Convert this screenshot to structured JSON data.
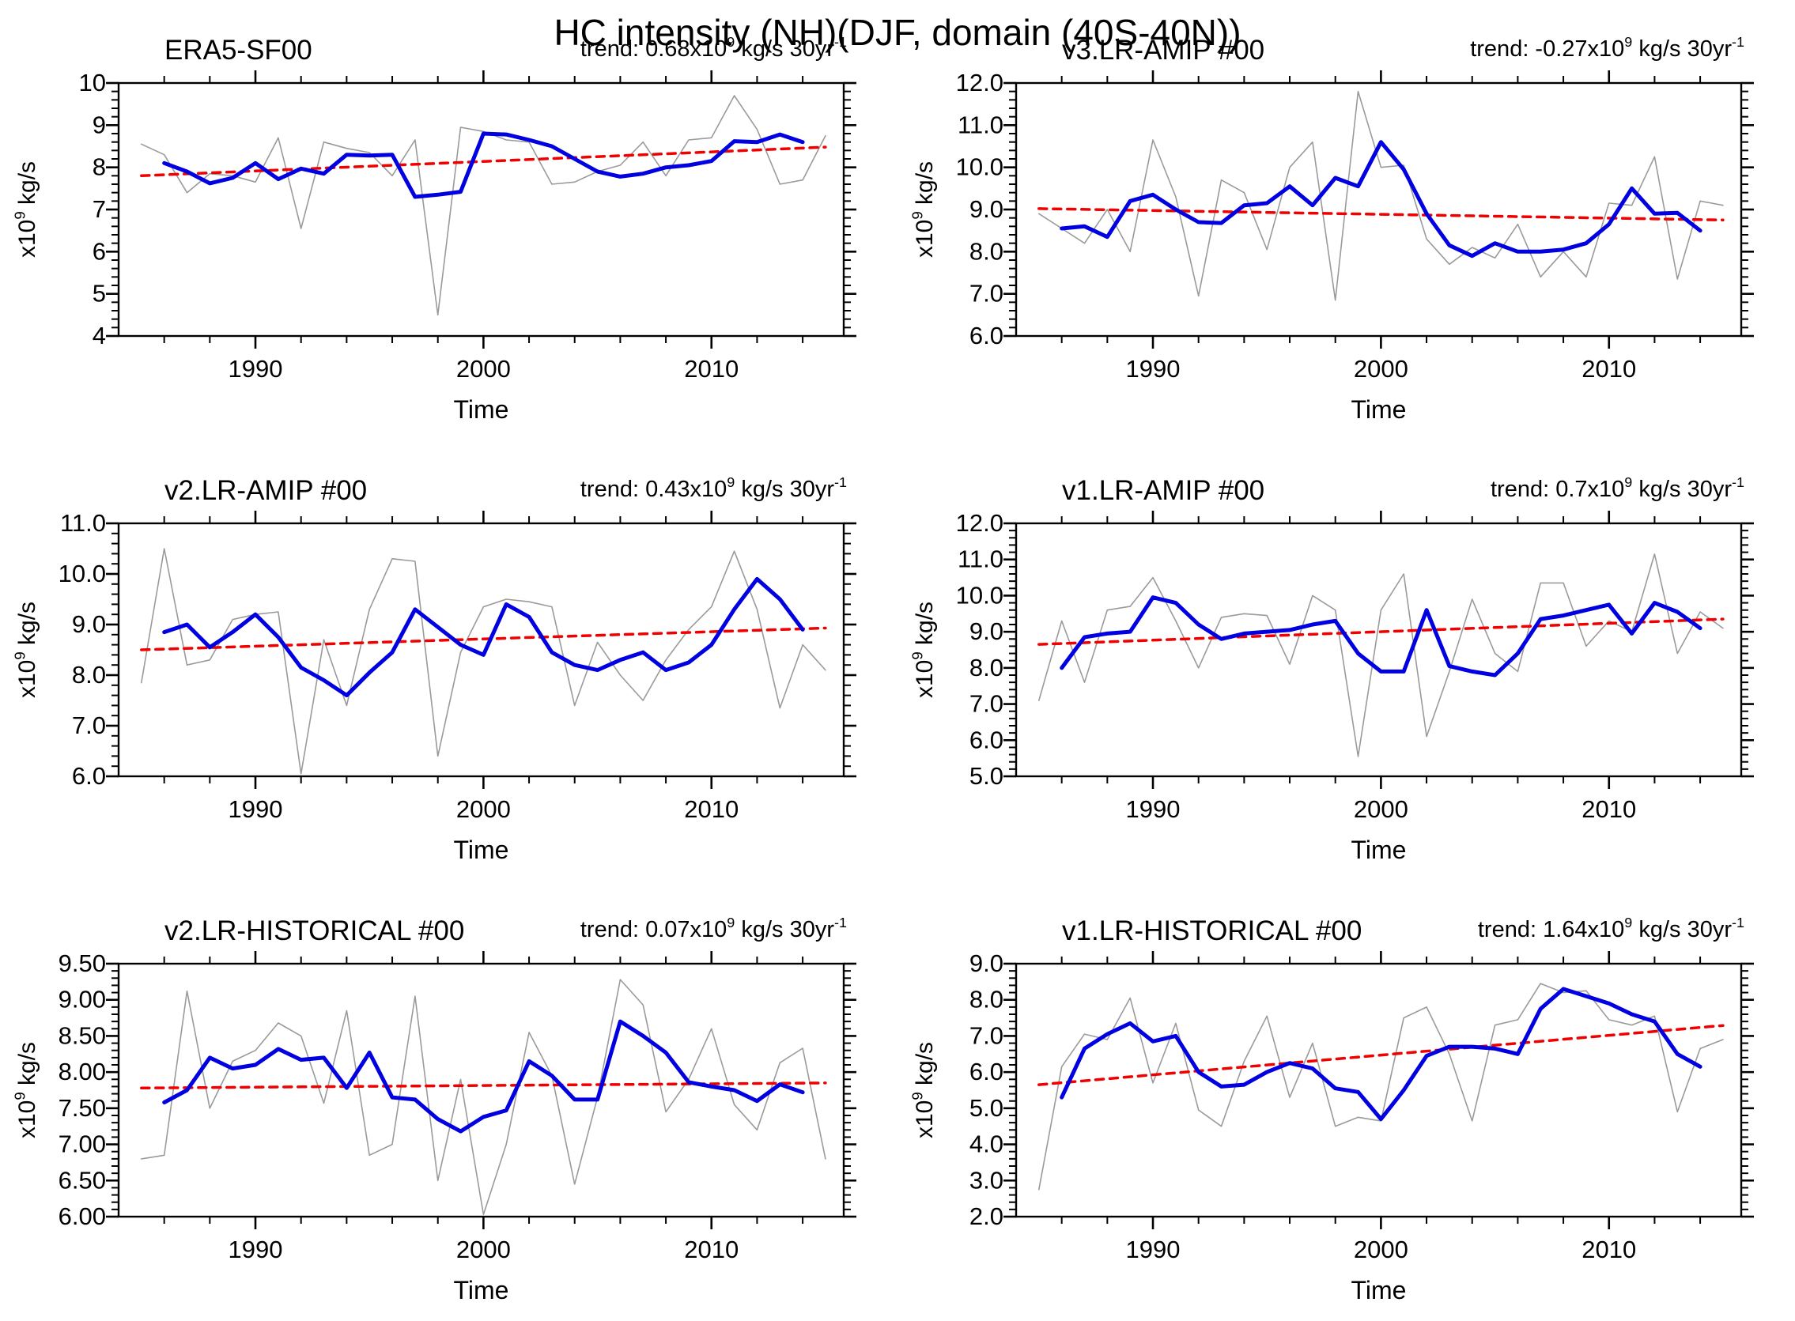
{
  "figure_title": "HC intensity (NH)(DJF, domain (40S-40N))",
  "xlabel": "Time",
  "colors": {
    "raw_line": "#9a9a9a",
    "smoothed_line": "#0000e0",
    "trend_line": "#f00000",
    "axis": "#000000"
  },
  "ylabel_parts": {
    "base": "x10",
    "exp": "9",
    "units": " kg/s"
  },
  "trend_label_parts": {
    "prefix": "trend: ",
    "x10": "x10",
    "exp": "9",
    "units": " kg/s 30yr",
    "exp2": "-1"
  },
  "x_range": [
    1984,
    2015.8
  ],
  "x_major_tick_years": [
    1990,
    2000,
    2010
  ],
  "x_minor_tick_step": 2,
  "x_years_raw": [
    1985,
    1986,
    1987,
    1988,
    1989,
    1990,
    1991,
    1992,
    1993,
    1994,
    1995,
    1996,
    1997,
    1998,
    1999,
    2000,
    2001,
    2002,
    2003,
    2004,
    2005,
    2006,
    2007,
    2008,
    2009,
    2010,
    2011,
    2012,
    2013,
    2014,
    2015
  ],
  "x_years_smoothed": [
    1986,
    1987,
    1988,
    1989,
    1990,
    1991,
    1992,
    1993,
    1994,
    1995,
    1996,
    1997,
    1998,
    1999,
    2000,
    2001,
    2002,
    2003,
    2004,
    2005,
    2006,
    2007,
    2008,
    2009,
    2010,
    2011,
    2012,
    2013,
    2014
  ],
  "chart_data": [
    {
      "id": "era5-sf00",
      "type": "line",
      "title": "ERA5-SF00",
      "trend_value": "0.68",
      "ylim": [
        4,
        10
      ],
      "ytick_step": 1,
      "ytick_decimals": 0,
      "raw_values": [
        8.55,
        8.3,
        7.4,
        7.85,
        7.8,
        7.65,
        8.7,
        6.55,
        8.6,
        8.45,
        8.35,
        7.8,
        8.65,
        4.5,
        8.95,
        8.85,
        8.65,
        8.6,
        7.6,
        7.65,
        7.9,
        8.05,
        8.6,
        7.8,
        8.65,
        8.7,
        9.7,
        8.9,
        7.6,
        7.7,
        8.75
      ],
      "smoothed_values": [
        8.1,
        7.9,
        7.62,
        7.75,
        8.1,
        7.72,
        7.97,
        7.85,
        8.3,
        8.28,
        8.3,
        7.3,
        7.35,
        7.42,
        8.8,
        8.78,
        8.65,
        8.5,
        8.2,
        7.9,
        7.78,
        7.85,
        8.0,
        8.05,
        8.15,
        8.62,
        8.6,
        8.78,
        8.6
      ],
      "trend_start": 7.8,
      "trend_end": 8.48
    },
    {
      "id": "v3lr-amip",
      "type": "line",
      "title": "v3.LR-AMIP  #00",
      "trend_value": "-0.27",
      "ylim": [
        6,
        12
      ],
      "ytick_step": 1,
      "ytick_decimals": 1,
      "raw_values": [
        8.9,
        8.55,
        8.2,
        9.0,
        8.0,
        10.65,
        9.3,
        6.95,
        9.7,
        9.4,
        8.05,
        10.0,
        10.6,
        6.85,
        11.8,
        10.0,
        10.05,
        8.3,
        7.7,
        8.1,
        7.85,
        8.65,
        7.4,
        8.0,
        7.4,
        9.15,
        9.1,
        10.25,
        7.35,
        9.2,
        9.1
      ],
      "smoothed_values": [
        8.55,
        8.6,
        8.35,
        9.2,
        9.35,
        9.0,
        8.7,
        8.68,
        9.1,
        9.15,
        9.55,
        9.1,
        9.75,
        9.55,
        10.6,
        9.95,
        8.9,
        8.15,
        7.9,
        8.2,
        8.0,
        8.0,
        8.05,
        8.2,
        8.65,
        9.5,
        8.9,
        8.92,
        8.5
      ],
      "trend_start": 9.02,
      "trend_end": 8.75
    },
    {
      "id": "v2lr-amip",
      "type": "line",
      "title": "v2.LR-AMIP  #00",
      "trend_value": "0.43",
      "ylim": [
        6,
        11
      ],
      "ytick_step": 1,
      "ytick_decimals": 1,
      "raw_values": [
        7.85,
        10.5,
        8.2,
        8.3,
        9.1,
        9.2,
        9.25,
        6.05,
        8.7,
        7.4,
        9.3,
        10.3,
        10.25,
        6.4,
        8.45,
        9.35,
        9.5,
        9.45,
        9.35,
        7.4,
        8.65,
        8.0,
        7.5,
        8.3,
        8.9,
        9.35,
        10.45,
        9.3,
        7.35,
        8.6,
        8.1
      ],
      "smoothed_values": [
        8.85,
        9.0,
        8.55,
        8.85,
        9.2,
        8.75,
        8.15,
        7.9,
        7.6,
        8.05,
        8.45,
        9.3,
        8.95,
        8.6,
        8.4,
        9.4,
        9.15,
        8.45,
        8.2,
        8.1,
        8.3,
        8.45,
        8.1,
        8.25,
        8.6,
        9.3,
        9.9,
        9.5,
        8.9
      ],
      "trend_start": 8.5,
      "trend_end": 8.93
    },
    {
      "id": "v1lr-amip",
      "type": "line",
      "title": "v1.LR-AMIP  #00",
      "trend_value": "0.7",
      "ylim": [
        5,
        12
      ],
      "ytick_step": 1,
      "ytick_decimals": 1,
      "raw_values": [
        7.1,
        9.3,
        7.6,
        9.6,
        9.7,
        10.5,
        9.3,
        8.0,
        9.4,
        9.5,
        9.45,
        8.1,
        10.0,
        9.6,
        5.55,
        9.6,
        10.6,
        6.1,
        7.9,
        9.9,
        8.4,
        7.9,
        10.35,
        10.35,
        8.6,
        9.3,
        9.0,
        11.15,
        8.4,
        9.55,
        9.1
      ],
      "smoothed_values": [
        8.0,
        8.85,
        8.95,
        9.0,
        9.95,
        9.8,
        9.2,
        8.8,
        8.95,
        9.0,
        9.05,
        9.2,
        9.3,
        8.4,
        7.9,
        7.9,
        9.6,
        8.05,
        7.9,
        7.8,
        8.4,
        9.35,
        9.45,
        9.6,
        9.75,
        8.95,
        9.8,
        9.55,
        9.1
      ],
      "trend_start": 8.65,
      "trend_end": 9.35
    },
    {
      "id": "v2lr-historical",
      "type": "line",
      "title": "v2.LR-HISTORICAL  #00",
      "trend_value": "0.07",
      "ylim": [
        6,
        9.5
      ],
      "ytick_step": 0.5,
      "ytick_decimals": 2,
      "raw_values": [
        6.8,
        6.85,
        9.12,
        7.5,
        8.15,
        8.3,
        8.68,
        8.5,
        7.57,
        8.85,
        6.85,
        7.0,
        9.05,
        6.5,
        7.9,
        6.03,
        7.0,
        8.55,
        7.95,
        6.45,
        7.65,
        9.28,
        8.93,
        7.45,
        7.9,
        8.6,
        7.55,
        7.2,
        8.13,
        8.33,
        6.8
      ],
      "smoothed_values": [
        7.58,
        7.75,
        8.2,
        8.05,
        8.1,
        8.32,
        8.17,
        8.2,
        7.78,
        8.27,
        7.65,
        7.62,
        7.35,
        7.18,
        7.38,
        7.47,
        8.15,
        7.95,
        7.62,
        7.62,
        8.7,
        8.5,
        8.27,
        7.86,
        7.8,
        7.75,
        7.6,
        7.83,
        7.72
      ],
      "trend_start": 7.78,
      "trend_end": 7.85
    },
    {
      "id": "v1lr-historical",
      "type": "line",
      "title": "v1.LR-HISTORICAL  #00",
      "trend_value": "1.64",
      "ylim": [
        2,
        9
      ],
      "ytick_step": 1,
      "ytick_decimals": 1,
      "raw_values": [
        2.75,
        6.15,
        7.05,
        6.9,
        8.05,
        5.7,
        7.35,
        4.95,
        4.5,
        6.3,
        7.55,
        5.3,
        6.8,
        4.5,
        4.75,
        4.65,
        7.5,
        7.8,
        6.5,
        4.65,
        7.3,
        7.45,
        8.45,
        8.2,
        8.25,
        7.45,
        7.3,
        7.55,
        4.9,
        6.65,
        6.9
      ],
      "smoothed_values": [
        5.3,
        6.65,
        7.05,
        7.35,
        6.85,
        7.0,
        6.0,
        5.6,
        5.65,
        6.0,
        6.25,
        6.1,
        5.55,
        5.45,
        4.7,
        5.5,
        6.45,
        6.7,
        6.7,
        6.65,
        6.5,
        7.75,
        8.3,
        8.1,
        7.9,
        7.6,
        7.4,
        6.5,
        6.15
      ],
      "trend_start": 5.65,
      "trend_end": 7.29
    }
  ]
}
